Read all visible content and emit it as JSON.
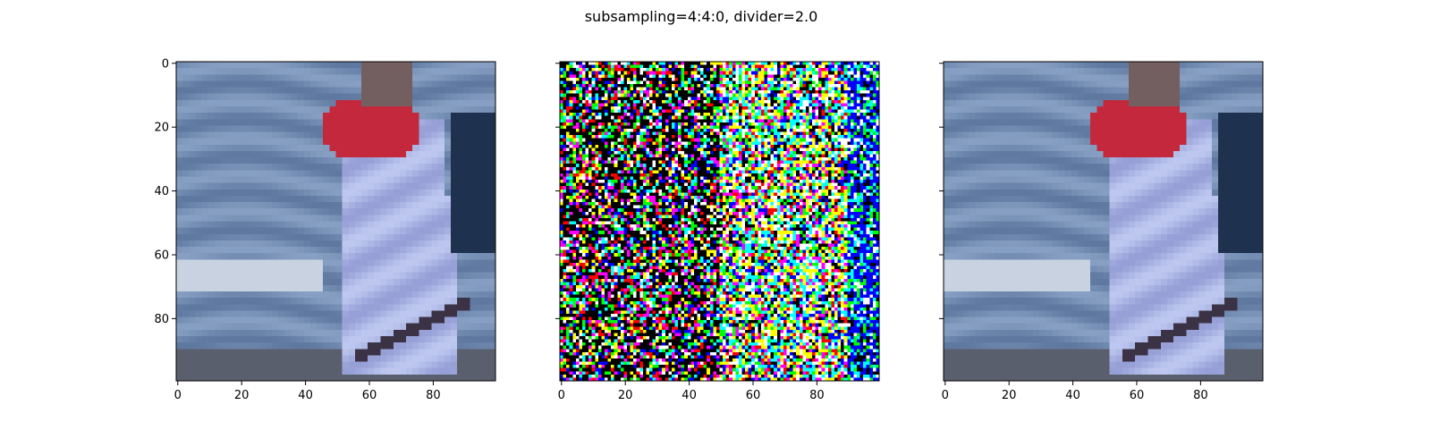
{
  "title": "subsampling=4:4:0, divider=2.0",
  "chart_data": [
    {
      "type": "heatmap",
      "panel": "left",
      "content": "blurred photo of a person in a white jacket with red hood against a blue background",
      "xlim": [
        0,
        99
      ],
      "ylim": [
        99,
        0
      ],
      "x_ticks": [
        "0",
        "20",
        "40",
        "60",
        "80"
      ],
      "y_ticks": [
        "0",
        "20",
        "40",
        "60",
        "80"
      ],
      "grid": false
    },
    {
      "type": "heatmap",
      "panel": "middle",
      "content": "difference image, saturated colour noise (black, red, green, blue, cyan, magenta, yellow, white)",
      "palette": [
        "#000000",
        "#ff0000",
        "#00ff00",
        "#0000ff",
        "#00ffff",
        "#ff00ff",
        "#ffff00",
        "#ffffff"
      ],
      "xlim": [
        0,
        99
      ],
      "ylim": [
        99,
        0
      ],
      "x_ticks": [
        "0",
        "20",
        "40",
        "60",
        "80"
      ],
      "y_ticks": [],
      "grid": false
    },
    {
      "type": "heatmap",
      "panel": "right",
      "content": "blurred photo of a person in a white jacket with red hood against a blue background",
      "xlim": [
        0,
        99
      ],
      "ylim": [
        99,
        0
      ],
      "x_ticks": [
        "0",
        "20",
        "40",
        "60",
        "80"
      ],
      "y_ticks": [],
      "grid": false
    }
  ]
}
